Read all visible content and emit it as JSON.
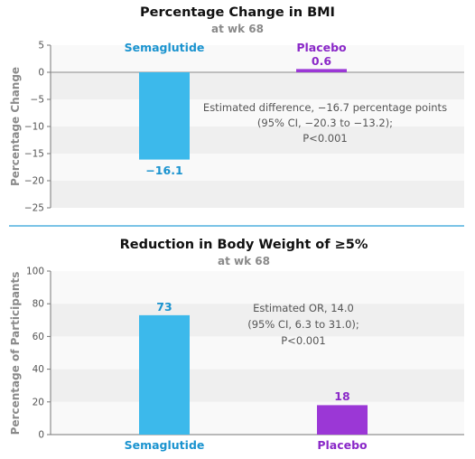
{
  "colors": {
    "semaglutide": "#3cb9eb",
    "placebo": "#9b37d6",
    "semaglutide_text": "#1a93cf",
    "placebo_text": "#8a28c8",
    "divider": "#2b9fd8",
    "band_light": "#f9f9f9",
    "band_dark": "#efefef"
  },
  "chart_data": [
    {
      "type": "bar",
      "title": "Percentage Change in BMI",
      "subtitle": "at wk 68",
      "ylabel": "Percentage Change",
      "xlabel": "",
      "categories": [
        "Semaglutide",
        "Placebo"
      ],
      "values": [
        -16.1,
        0.6
      ],
      "value_labels": [
        "−16.1",
        "0.6"
      ],
      "ylim": [
        -25,
        5
      ],
      "yticks": [
        5,
        0,
        -5,
        -10,
        -15,
        -20,
        -25
      ],
      "ytick_labels": [
        "5",
        "0",
        "−5",
        "−10",
        "−15",
        "−20",
        "−25"
      ],
      "annotation": [
        "Estimated difference, −16.7 percentage points",
        "(95% CI, −20.3 to −13.2);",
        "P<0.001"
      ]
    },
    {
      "type": "bar",
      "title": "Reduction in Body Weight of ≥5%",
      "subtitle": "at wk 68",
      "ylabel": "Percentage of Participants",
      "xlabel": "",
      "categories": [
        "Semaglutide",
        "Placebo"
      ],
      "values": [
        73,
        18
      ],
      "value_labels": [
        "73",
        "18"
      ],
      "ylim": [
        0,
        100
      ],
      "yticks": [
        100,
        80,
        60,
        40,
        20,
        0
      ],
      "ytick_labels": [
        "100",
        "80",
        "60",
        "40",
        "20",
        "0"
      ],
      "annotation": [
        "Estimated OR, 14.0",
        "(95% CI, 6.3 to 31.0);",
        "P<0.001"
      ]
    }
  ]
}
